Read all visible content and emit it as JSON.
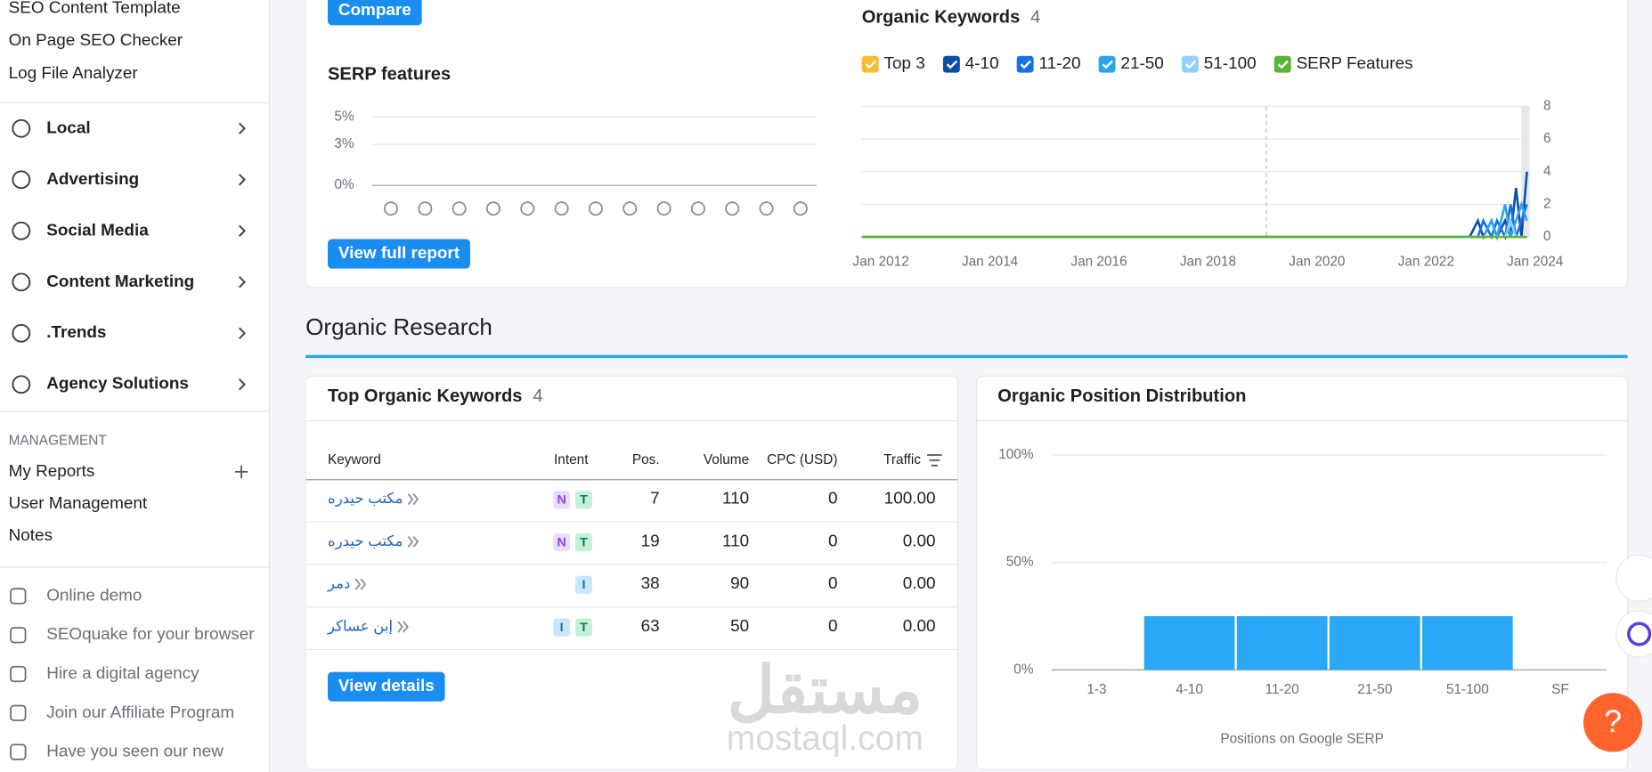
{
  "sidebar": {
    "top_links": [
      "SEO Content Template",
      "On Page SEO Checker",
      "Log File Analyzer"
    ],
    "sections": [
      "Local",
      "Advertising",
      "Social Media",
      "Content Marketing",
      ".Trends",
      "Agency Solutions"
    ],
    "management_heading": "MANAGEMENT",
    "management_links": [
      "My Reports",
      "User Management",
      "Notes"
    ],
    "footer_links": [
      "Online demo",
      "SEOquake for your browser",
      "Hire a digital agency",
      "Join our Affiliate Program",
      "Have you seen our new"
    ]
  },
  "overview": {
    "compare_button": "Compare",
    "view_full_report_button": "View full report"
  },
  "organic_research": {
    "heading": "Organic Research",
    "top_keywords": {
      "title": "Top Organic Keywords",
      "count": 4,
      "columns": [
        "Keyword",
        "Intent",
        "Pos.",
        "Volume",
        "CPC (USD)",
        "Traffic"
      ],
      "rows": [
        {
          "keyword": "مكتب حيدره",
          "intent": [
            {
              "label": "N",
              "bg": "#eadcfb",
              "fg": "#8a3ffc"
            },
            {
              "label": "T",
              "bg": "#c4f0d8",
              "fg": "#0e7c45"
            }
          ],
          "pos": 7,
          "volume": 110,
          "cpc": 0,
          "traffic": "100.00"
        },
        {
          "keyword": "مكتب حيدره",
          "intent": [
            {
              "label": "N",
              "bg": "#eadcfb",
              "fg": "#8a3ffc"
            },
            {
              "label": "T",
              "bg": "#c4f0d8",
              "fg": "#0e7c45"
            }
          ],
          "pos": 19,
          "volume": 110,
          "cpc": 0,
          "traffic": "0.00"
        },
        {
          "keyword": "دمر",
          "intent": [
            {
              "label": "I",
              "bg": "#c9e6fb",
              "fg": "#1a6ea8"
            }
          ],
          "pos": 38,
          "volume": 90,
          "cpc": 0,
          "traffic": "0.00"
        },
        {
          "keyword": "إبن عساكر",
          "intent": [
            {
              "label": "I",
              "bg": "#c9e6fb",
              "fg": "#1a6ea8"
            },
            {
              "label": "T",
              "bg": "#c4f0d8",
              "fg": "#0e7c45"
            }
          ],
          "pos": 63,
          "volume": 50,
          "cpc": 0,
          "traffic": "0.00"
        }
      ],
      "button": "View details"
    },
    "distribution_title": "Organic Position Distribution"
  },
  "watermark": [
    "مستقل",
    "mostaql.com"
  ],
  "help_button": "?",
  "chart_data": [
    {
      "type": "line",
      "title": "SERP features",
      "ylim": [
        0,
        5
      ],
      "yticks": [
        {
          "value": 0,
          "label": "0%"
        },
        {
          "value": 3,
          "label": "3%"
        },
        {
          "value": 5,
          "label": "5%"
        }
      ],
      "grid": true
    },
    {
      "type": "line",
      "title": "Organic Keywords",
      "count": 4,
      "xlim": [
        2011.65,
        2023.9
      ],
      "xticks": [
        {
          "value": 2012,
          "label": "Jan 2012"
        },
        {
          "value": 2014,
          "label": "Jan 2014"
        },
        {
          "value": 2016,
          "label": "Jan 2016"
        },
        {
          "value": 2018,
          "label": "Jan 2018"
        },
        {
          "value": 2020,
          "label": "Jan 2020"
        },
        {
          "value": 2022,
          "label": "Jan 2022"
        },
        {
          "value": 2024,
          "label": "Jan 2024"
        }
      ],
      "ylim": [
        0,
        8
      ],
      "yticks": [
        0,
        2,
        4,
        6,
        8
      ],
      "grid": true,
      "x": [
        2011.65,
        2022.8,
        2022.95,
        2023.05,
        2023.2,
        2023.3,
        2023.45,
        2023.55,
        2023.65,
        2023.75,
        2023.85
      ],
      "series": [
        {
          "name": "Top 3",
          "color": "#f8bd2e",
          "values": [
            0,
            0,
            0,
            0,
            0,
            0,
            0,
            0,
            0,
            0,
            0
          ]
        },
        {
          "name": "4-10",
          "color": "#0b4fa8",
          "values": [
            0,
            0,
            1,
            0,
            1,
            0,
            1,
            0,
            3,
            0,
            4
          ]
        },
        {
          "name": "11-20",
          "color": "#1672e3",
          "values": [
            0,
            0,
            0,
            1,
            0,
            1,
            0,
            2,
            0,
            1,
            2
          ]
        },
        {
          "name": "21-50",
          "color": "#2ea3f2",
          "values": [
            0,
            0,
            0,
            0,
            1,
            0,
            2,
            0,
            1,
            2,
            1
          ]
        },
        {
          "name": "51-100",
          "color": "#93cff8",
          "values": [
            0,
            0,
            0,
            0,
            0,
            0,
            0,
            1,
            0,
            0,
            0
          ]
        },
        {
          "name": "SERP Features",
          "color": "#5cb531",
          "values": [
            0,
            0,
            0,
            0,
            0,
            0,
            0,
            0,
            0,
            0,
            0
          ]
        }
      ]
    },
    {
      "type": "bar",
      "title": "Positions on Google SERP",
      "categories": [
        "1-3",
        "4-10",
        "11-20",
        "21-50",
        "51-100",
        "SF"
      ],
      "values": [
        0,
        25,
        25,
        25,
        25,
        0
      ],
      "color": "#2aa8f5",
      "ylim": [
        0,
        100
      ],
      "yticks": [
        {
          "value": 0,
          "label": "0%"
        },
        {
          "value": 50,
          "label": "50%"
        },
        {
          "value": 100,
          "label": "100%"
        }
      ],
      "grid": true
    }
  ]
}
